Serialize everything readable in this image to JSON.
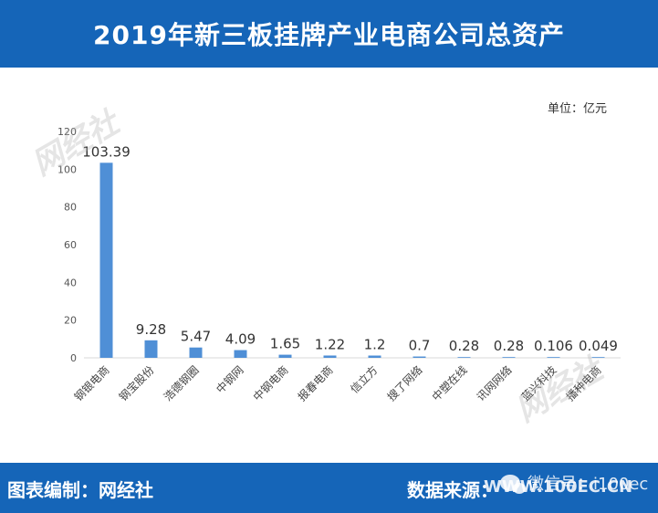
{
  "header": {
    "title": "2019年新三板挂牌产业电商公司总资产"
  },
  "unit": "单位：亿元",
  "footer": {
    "left": "图表编制：网经社",
    "right": "数据来源：",
    "url": "WWW.100EC.CN",
    "wechat": "微信号：i100ec"
  },
  "watermark": {
    "text": "网经社"
  },
  "colors": {
    "header_bg": "#1565b8",
    "bar": "#4f8fd6",
    "axis": "#d9d9d9"
  },
  "chart_data": {
    "type": "bar",
    "title": "2019年新三板挂牌产业电商公司总资产",
    "xlabel": "",
    "ylabel": "",
    "ylim": [
      0,
      120
    ],
    "yticks": [
      0,
      20,
      40,
      60,
      80,
      100,
      120
    ],
    "categories": [
      "钢银电商",
      "钢宝股份",
      "浩德钢圈",
      "中钢网",
      "中钢电商",
      "报春电商",
      "信立方",
      "搜了网络",
      "中塑在线",
      "讯网网络",
      "蓝兴科技",
      "播种电商"
    ],
    "values": [
      103.39,
      9.28,
      5.47,
      4.09,
      1.65,
      1.22,
      1.2,
      0.7,
      0.28,
      0.28,
      0.106,
      0.049
    ],
    "value_labels": [
      "103.39",
      "9.28",
      "5.47",
      "4.09",
      "1.65",
      "1.22",
      "1.2",
      "0.7",
      "0.28",
      "0.28",
      "0.106",
      "0.049"
    ],
    "grid": false
  }
}
